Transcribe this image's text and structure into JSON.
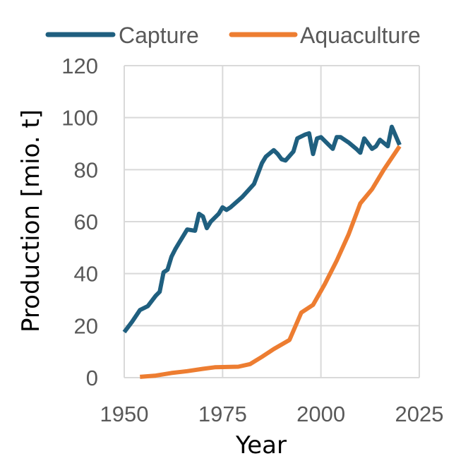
{
  "chart_data": {
    "type": "line",
    "title": "",
    "xlabel": "Year",
    "ylabel": "Production [mio. t]",
    "xlim": [
      1950,
      2025
    ],
    "ylim": [
      0,
      120
    ],
    "x_ticks": [
      "1950",
      "1975",
      "2000",
      "2025"
    ],
    "y_ticks": [
      "0",
      "20",
      "40",
      "60",
      "80",
      "100",
      "120"
    ],
    "grid": true,
    "legend_position": "top",
    "series": [
      {
        "name": "Capture",
        "color": "#1f5f7f",
        "x": [
          1950,
          1952,
          1954,
          1956,
          1958,
          1959,
          1960,
          1961,
          1962,
          1963,
          1964,
          1966,
          1968,
          1969,
          1970,
          1971,
          1972,
          1974,
          1975,
          1976,
          1977,
          1980,
          1983,
          1985,
          1986,
          1988,
          1989,
          1990,
          1991,
          1993,
          1994,
          1996,
          1997,
          1998,
          1999,
          2000,
          2003,
          2004,
          2005,
          2007,
          2009,
          2010,
          2011,
          2013,
          2014,
          2015,
          2017,
          2018,
          2020
        ],
        "y": [
          17.5,
          21.5,
          26,
          27.5,
          31.5,
          33,
          40.5,
          41.5,
          46.5,
          49.5,
          52,
          57,
          56.5,
          63,
          62,
          57.5,
          60,
          63,
          65.5,
          64.5,
          65.5,
          69.5,
          74.5,
          82.5,
          85,
          87.5,
          86,
          84,
          83.5,
          87,
          92,
          93.5,
          94,
          86,
          92,
          92.5,
          88,
          92.5,
          92.5,
          90.5,
          88,
          86.5,
          92,
          88,
          89,
          91.5,
          89,
          96.5,
          89.5
        ]
      },
      {
        "name": "Aquaculture",
        "color": "#ed7d31",
        "x": [
          1954,
          1958,
          1962,
          1966,
          1970,
          1973,
          1979,
          1982,
          1985,
          1988,
          1992,
          1995,
          1998,
          2001,
          2004,
          2007,
          2010,
          2013,
          2016,
          2020
        ],
        "y": [
          0.3,
          0.8,
          1.8,
          2.5,
          3.4,
          4,
          4.2,
          5.2,
          8,
          11,
          14.5,
          25,
          28,
          36,
          45,
          55,
          67,
          72.5,
          80,
          89
        ]
      }
    ]
  }
}
